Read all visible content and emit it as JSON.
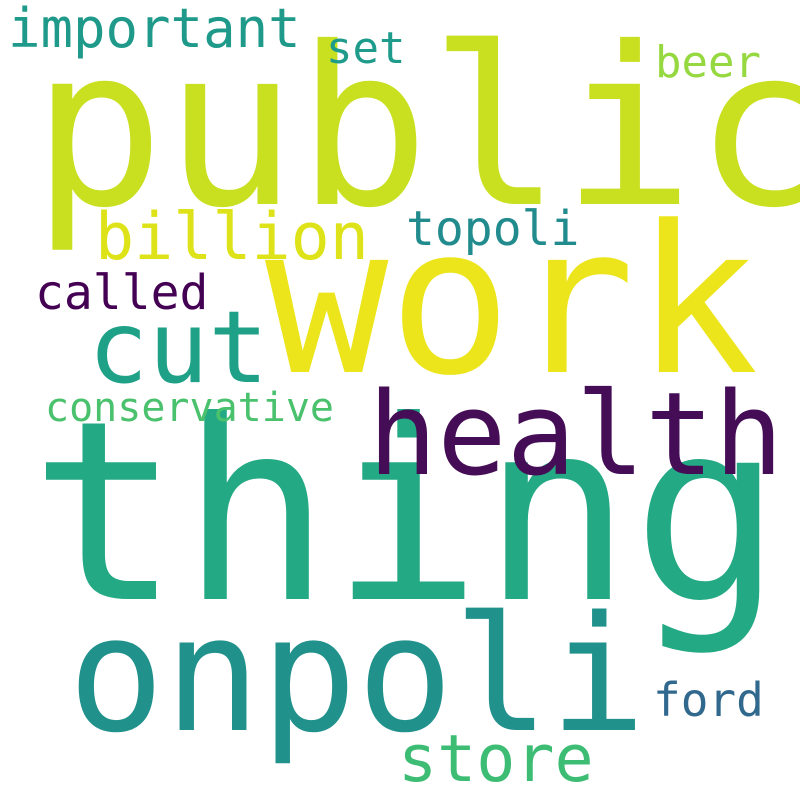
{
  "words": [
    {
      "key": "public",
      "text": "public",
      "color": "#c8e020"
    },
    {
      "key": "work",
      "text": "work",
      "color": "#ece51b"
    },
    {
      "key": "thing",
      "text": "thing",
      "color": "#23a983"
    },
    {
      "key": "onpoli",
      "text": "onpoli",
      "color": "#21918c"
    },
    {
      "key": "health",
      "text": "health",
      "color": "#440d56"
    },
    {
      "key": "cut",
      "text": "cut",
      "color": "#1fa187"
    },
    {
      "key": "billion",
      "text": "billion",
      "color": "#dde318"
    },
    {
      "key": "store",
      "text": "store",
      "color": "#3dbc74"
    },
    {
      "key": "important",
      "text": "important",
      "color": "#1f9a8a"
    },
    {
      "key": "topoli",
      "text": "topoli",
      "color": "#228b8d"
    },
    {
      "key": "called",
      "text": "called",
      "color": "#440154"
    },
    {
      "key": "conservative",
      "text": "conservative",
      "color": "#4ac16d"
    },
    {
      "key": "beer",
      "text": "beer",
      "color": "#95d840"
    },
    {
      "key": "set",
      "text": "set",
      "color": "#1e9b8a"
    },
    {
      "key": "ford",
      "text": "ford",
      "color": "#31688e"
    }
  ]
}
